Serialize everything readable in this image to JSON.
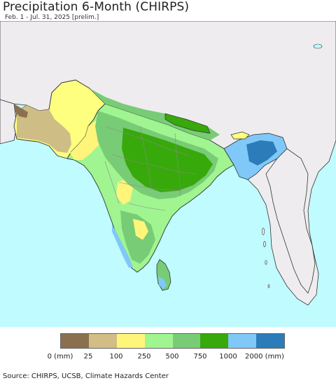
{
  "header": {
    "title": "Precipitation 6-Month (CHIRPS)",
    "subtitle": "Feb. 1 - Jul. 31, 2025 [prelim.]"
  },
  "legend": {
    "labels": [
      "0 (mm)",
      "25",
      "100",
      "250",
      "500",
      "750",
      "1000",
      "2000 (mm)"
    ],
    "colors": [
      "#8b7050",
      "#d2bd85",
      "#fff57a",
      "#a0f590",
      "#78cc76",
      "#37a90b",
      "#80c8f8",
      "#2b7cb8"
    ]
  },
  "footer": {
    "source": "Source: CHIRPS, UCSB, Climate Hazards Center"
  },
  "colors": {
    "ocean": "#bffbff",
    "outside_land": "#efecef",
    "border": "#333333",
    "state_border": "#8a8a8a"
  }
}
